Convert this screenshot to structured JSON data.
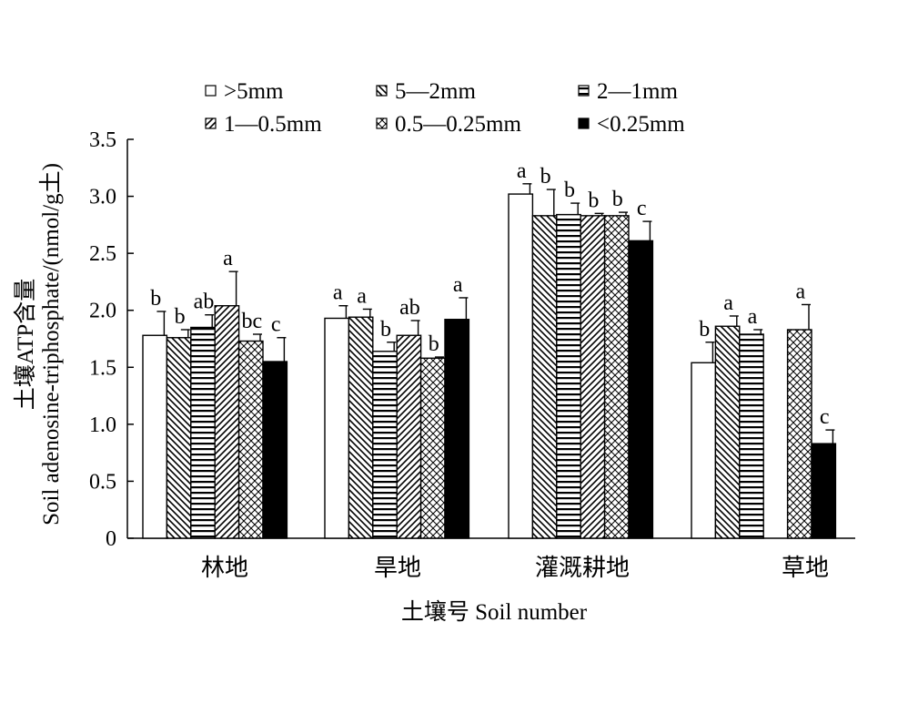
{
  "chart_data": {
    "type": "bar",
    "ylabel_line1": "土壤ATP含量",
    "ylabel_line2": "Soil adenosine-triphosphate/(nmol/g土)",
    "xlabel": "土壤号 Soil number",
    "ylim": [
      0,
      3.5
    ],
    "yticks": [
      "0",
      "0.5",
      "1.0",
      "1.5",
      "2.0",
      "2.5",
      "3.0",
      "3.5"
    ],
    "categories": [
      "林地",
      "旱地",
      "灌溉耕地",
      "草地"
    ],
    "legend_position": "top",
    "series": [
      {
        "name": ">5mm",
        "pattern": "white",
        "values": [
          1.78,
          1.93,
          3.02,
          1.54
        ],
        "errors": [
          0.21,
          0.11,
          0.09,
          0.18
        ],
        "labels": [
          "b",
          "a",
          "a",
          "b"
        ]
      },
      {
        "name": "5—2mm",
        "pattern": "diag-back",
        "values": [
          1.76,
          1.94,
          2.83,
          1.86
        ],
        "errors": [
          0.07,
          0.07,
          0.23,
          0.09
        ],
        "labels": [
          "b",
          "a",
          "b",
          "a"
        ]
      },
      {
        "name": "2—1mm",
        "pattern": "hlines",
        "values": [
          1.85,
          1.64,
          2.84,
          1.79
        ],
        "errors": [
          0.11,
          0.08,
          0.1,
          0.04
        ],
        "labels": [
          "ab",
          "b",
          "b",
          "a"
        ]
      },
      {
        "name": "1—0.5mm",
        "pattern": "diag-fwd",
        "values": [
          2.04,
          1.78,
          2.83,
          null
        ],
        "errors": [
          0.3,
          0.13,
          0.02,
          null
        ],
        "labels": [
          "a",
          "ab",
          "b",
          ""
        ]
      },
      {
        "name": "0.5—0.25mm",
        "pattern": "crosshatch",
        "values": [
          1.73,
          1.58,
          2.83,
          1.83
        ],
        "errors": [
          0.06,
          0.01,
          0.03,
          0.22
        ],
        "labels": [
          "bc",
          "b",
          "b",
          "a"
        ]
      },
      {
        "name": "<0.25mm",
        "pattern": "black",
        "values": [
          1.55,
          1.92,
          2.61,
          0.83
        ],
        "errors": [
          0.21,
          0.19,
          0.17,
          0.12
        ],
        "labels": [
          "c",
          "a",
          "c",
          "c"
        ]
      }
    ]
  }
}
